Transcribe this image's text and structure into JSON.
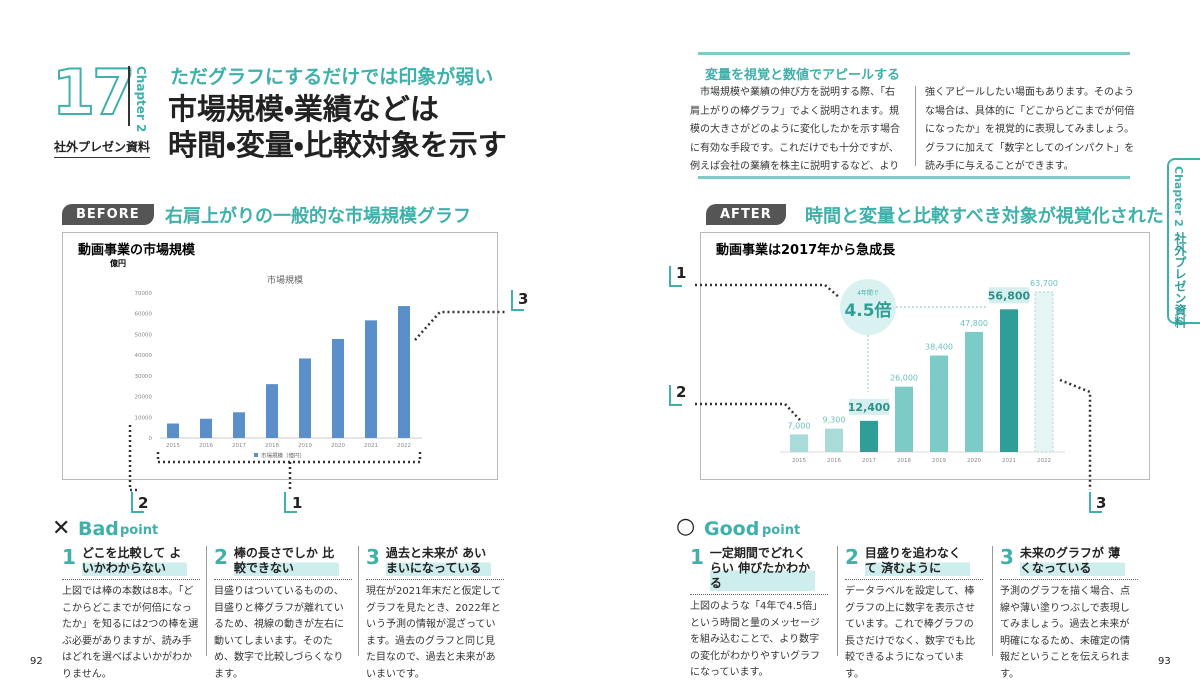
{
  "left": {
    "chapter_number": "17",
    "chapter": "Chapter 2",
    "section": "社外プレゼン資料",
    "subtitle": "ただグラフにするだけでは印象が弱い",
    "title_lines": [
      "市場規模・業績などは",
      "時間・変量・比較対象を示す"
    ],
    "tag": "BEFORE",
    "heading": "右肩上がりの一般的な市場規模グラフ",
    "callouts": [
      "1",
      "2",
      "3"
    ],
    "point_mark": "✕",
    "point_word": "Bad",
    "point_suffix": "point",
    "points": [
      {
        "number": "1",
        "heading": "どこを比較して よいかわからない",
        "body": "上図では棒の本数は8本。「どこからどこまでが何倍になったか」を知るには2つの棒を選ぶ必要がありますが、読み手はどれを選べばよいかがわかりません。"
      },
      {
        "number": "2",
        "heading": "棒の長さでしか 比較できない",
        "body": "目盛りはついているものの、目盛りと棒グラフが離れているため、視線の動きが左右に動いてしまいます。そのため、数字で比較しづらくなります。"
      },
      {
        "number": "3",
        "heading": "過去と未来が あいまいになっている",
        "body": "現在が2021年末だと仮定してグラフを見たとき、2022年という予測の情報が混ざっています。過去のグラフと同じ見た目なので、過去と未来があいまいです。"
      }
    ],
    "page_number": "92"
  },
  "right": {
    "lead_heading": "変量を視覚と数値でアピールする",
    "lead_body": [
      "市場規模や業績の伸び方を説明する際、「右肩上がりの棒グラフ」でよく説明されます。規模の大きさがどのように変化したかを示す場合に有効な手段です。これだけでも十分ですが、例えば会社の業績を株主に説明するなど、より",
      "強くアピールしたい場面もあります。そのような場合は、具体的に「どこからどこまでが何倍になったか」を視覚的に表現してみましょう。グラフに加えて「数字としてのインパクト」を読み手に与えることができます。"
    ],
    "side_chapter": "Chapter 2",
    "side_section": "社外プレゼン資料",
    "tag": "AFTER",
    "heading": "時間と変量と比較すべき対象が視覚化された",
    "callouts": [
      "1",
      "2",
      "3"
    ],
    "point_mark": "○",
    "point_word": "Good",
    "point_suffix": "point",
    "points": [
      {
        "number": "1",
        "heading": "一定期間でどれくらい 伸びたかわかる",
        "body": "上図のような「4年で4.5倍」という時間と量のメッセージを組み込むことで、より数字の変化がわかりやすいグラフになっています。"
      },
      {
        "number": "2",
        "heading": "目盛りを追わなくて 済むように",
        "body": "データラベルを設定して、棒グラフの上に数字を表示させています。これで棒グラフの長さだけでなく、数字でも比較できるようになっています。"
      },
      {
        "number": "3",
        "heading": "未来のグラフが 薄くなっている",
        "body": "予測のグラフを描く場合、点線や薄い塗りつぶしで表現してみましょう。過去と未来が明確になるため、未確定の情報だということを伝えられます。"
      }
    ],
    "page_number": "93"
  },
  "chart_data": [
    {
      "type": "bar",
      "card_title": "動画事業の市場規模",
      "title": "市場規模",
      "ylabel": "億円",
      "categories": [
        "2015",
        "2016",
        "2017",
        "2018",
        "2019",
        "2020",
        "2021",
        "2022"
      ],
      "series": [
        {
          "name": "市場規模（億円）",
          "color": "#5b8fc9",
          "values": [
            7000,
            9300,
            12400,
            26000,
            38400,
            47800,
            56800,
            63700
          ]
        }
      ],
      "ylim": [
        0,
        70000
      ],
      "yticks": [
        0,
        10000,
        20000,
        30000,
        40000,
        50000,
        60000,
        70000
      ],
      "grid": false,
      "legend": "bottom"
    },
    {
      "type": "bar",
      "title": "動画事業は2017年から急成長",
      "categories": [
        "2015",
        "2016",
        "2017",
        "2018",
        "2019",
        "2020",
        "2021",
        "2022"
      ],
      "values": [
        7000,
        9300,
        12400,
        26000,
        38400,
        47800,
        56800,
        63700
      ],
      "value_labels": [
        "7,000",
        "9,300",
        "12,400",
        "26,000",
        "38,400",
        "47,800",
        "56,800",
        "63,700"
      ],
      "colors": [
        "#a9dcd9",
        "#a9dcd9",
        "#2f9e98",
        "#7ccbc6",
        "#7ccbc6",
        "#7ccbc6",
        "#2f9e98",
        "#e4f5f4"
      ],
      "dashed": [
        false,
        false,
        false,
        false,
        false,
        false,
        false,
        true
      ],
      "annotation": {
        "lead": "4年間で",
        "text": "4.5倍"
      }
    }
  ]
}
